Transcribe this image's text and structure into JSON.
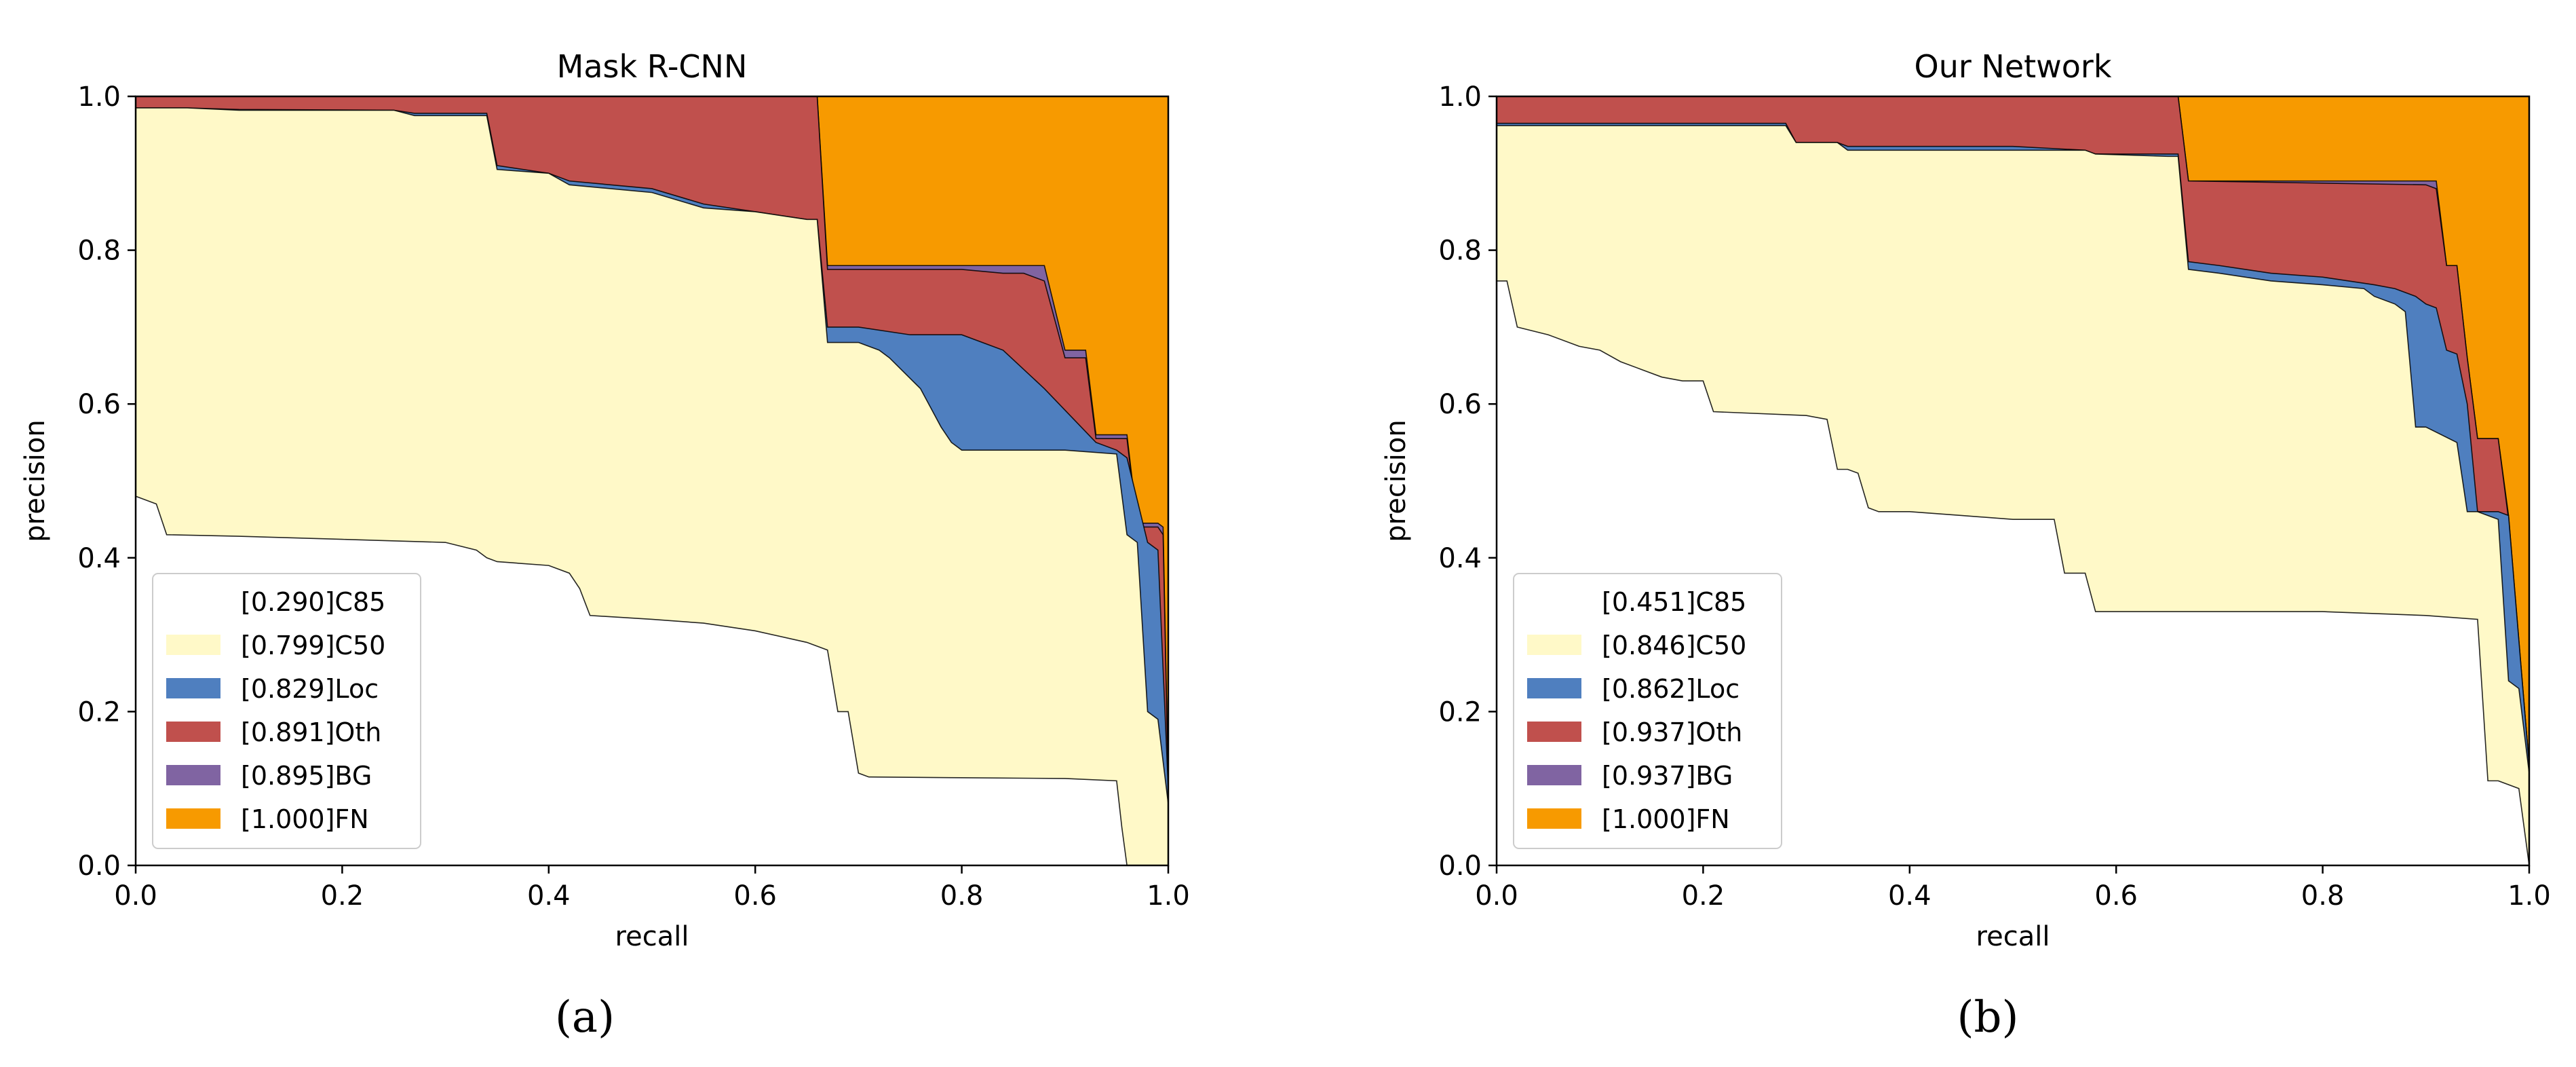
{
  "colors": {
    "C85": "#ffffff",
    "C50": "#fff9c8",
    "Loc": "#4f7fbf",
    "Oth": "#c0504d",
    "BG": "#8064a2",
    "FN": "#f79a00"
  },
  "captions": {
    "a": "(a)",
    "b": "(b)"
  },
  "chart_data": [
    {
      "type": "area",
      "title": "Mask R-CNN",
      "xlabel": "recall",
      "ylabel": "precision",
      "xlim": [
        0,
        1
      ],
      "ylim": [
        0,
        1
      ],
      "xticks": [
        0.0,
        0.2,
        0.4,
        0.6,
        0.8,
        1.0
      ],
      "yticks": [
        0.0,
        0.2,
        0.4,
        0.6,
        0.8,
        1.0
      ],
      "tick_labels_x": [
        "0.0",
        "0.2",
        "0.4",
        "0.6",
        "0.8",
        "1.0"
      ],
      "tick_labels_y": [
        "0.0",
        "0.2",
        "0.4",
        "0.6",
        "0.8",
        "1.0"
      ],
      "legend_position": "lower-left",
      "series": [
        {
          "key": "FN",
          "name": "[1.000]FN",
          "x": [
            0,
            1
          ],
          "y": [
            1.0,
            1.0
          ]
        },
        {
          "key": "BG",
          "name": "[0.895]BG",
          "x": [
            0,
            0.66,
            0.66,
            0.67,
            0.8,
            0.84,
            0.86,
            0.88,
            0.9,
            0.92,
            0.93,
            0.96,
            0.97,
            0.99,
            0.995,
            1
          ],
          "y": [
            1.0,
            1.0,
            1.0,
            0.78,
            0.78,
            0.78,
            0.78,
            0.78,
            0.67,
            0.67,
            0.56,
            0.56,
            0.445,
            0.445,
            0.44,
            0.1
          ]
        },
        {
          "key": "Oth",
          "name": "[0.891]Oth",
          "x": [
            0,
            0.66,
            0.66,
            0.67,
            0.8,
            0.84,
            0.86,
            0.88,
            0.9,
            0.92,
            0.93,
            0.96,
            0.97,
            0.99,
            0.995,
            1
          ],
          "y": [
            1.0,
            1.0,
            1.0,
            0.775,
            0.775,
            0.77,
            0.77,
            0.76,
            0.66,
            0.66,
            0.555,
            0.555,
            0.44,
            0.44,
            0.43,
            0.1
          ]
        },
        {
          "key": "Loc",
          "name": "[0.829]Loc",
          "x": [
            0,
            0.05,
            0.1,
            0.25,
            0.27,
            0.34,
            0.35,
            0.4,
            0.42,
            0.5,
            0.55,
            0.6,
            0.65,
            0.66,
            0.67,
            0.7,
            0.75,
            0.8,
            0.84,
            0.88,
            0.93,
            0.95,
            0.96,
            0.98,
            0.99,
            1
          ],
          "y": [
            0.985,
            0.985,
            0.983,
            0.982,
            0.978,
            0.978,
            0.91,
            0.9,
            0.89,
            0.88,
            0.86,
            0.85,
            0.84,
            0.84,
            0.7,
            0.7,
            0.69,
            0.69,
            0.67,
            0.62,
            0.55,
            0.54,
            0.53,
            0.42,
            0.41,
            0.1
          ]
        },
        {
          "key": "C50",
          "name": "[0.799]C50",
          "x": [
            0,
            0.05,
            0.1,
            0.25,
            0.27,
            0.34,
            0.35,
            0.4,
            0.42,
            0.5,
            0.55,
            0.6,
            0.65,
            0.66,
            0.67,
            0.7,
            0.72,
            0.73,
            0.76,
            0.78,
            0.79,
            0.8,
            0.9,
            0.95,
            0.96,
            0.97,
            0.98,
            0.99,
            1
          ],
          "y": [
            0.985,
            0.985,
            0.982,
            0.982,
            0.975,
            0.975,
            0.905,
            0.9,
            0.885,
            0.875,
            0.855,
            0.85,
            0.84,
            0.84,
            0.68,
            0.68,
            0.67,
            0.66,
            0.62,
            0.57,
            0.55,
            0.54,
            0.54,
            0.535,
            0.43,
            0.42,
            0.2,
            0.19,
            0.08
          ]
        },
        {
          "key": "C85",
          "name": "[0.290]C85",
          "x": [
            0,
            0.02,
            0.03,
            0.1,
            0.2,
            0.3,
            0.33,
            0.34,
            0.35,
            0.4,
            0.42,
            0.43,
            0.44,
            0.5,
            0.55,
            0.6,
            0.65,
            0.67,
            0.68,
            0.69,
            0.7,
            0.71,
            0.8,
            0.9,
            0.95,
            0.955,
            0.96,
            1
          ],
          "y": [
            0.48,
            0.47,
            0.43,
            0.428,
            0.424,
            0.42,
            0.41,
            0.4,
            0.395,
            0.39,
            0.38,
            0.36,
            0.325,
            0.32,
            0.315,
            0.305,
            0.29,
            0.28,
            0.2,
            0.2,
            0.12,
            0.115,
            0.114,
            0.113,
            0.11,
            0.05,
            0,
            0
          ]
        }
      ]
    },
    {
      "type": "area",
      "title": "Our Network",
      "xlabel": "recall",
      "ylabel": "precision",
      "xlim": [
        0,
        1
      ],
      "ylim": [
        0,
        1
      ],
      "xticks": [
        0.0,
        0.2,
        0.4,
        0.6,
        0.8,
        1.0
      ],
      "yticks": [
        0.0,
        0.2,
        0.4,
        0.6,
        0.8,
        1.0
      ],
      "tick_labels_x": [
        "0.0",
        "0.2",
        "0.4",
        "0.6",
        "0.8",
        "1.0"
      ],
      "tick_labels_y": [
        "0.0",
        "0.2",
        "0.4",
        "0.6",
        "0.8",
        "1.0"
      ],
      "legend_position": "lower-left",
      "series": [
        {
          "key": "FN",
          "name": "[1.000]FN",
          "x": [
            0,
            1
          ],
          "y": [
            1.0,
            1.0
          ]
        },
        {
          "key": "BG",
          "name": "[0.937]BG",
          "x": [
            0,
            0.66,
            0.66,
            0.67,
            0.9,
            0.91,
            0.92,
            0.93,
            0.94,
            0.95,
            0.97,
            0.98,
            1
          ],
          "y": [
            1.0,
            1.0,
            1.0,
            0.89,
            0.89,
            0.89,
            0.78,
            0.78,
            0.66,
            0.555,
            0.555,
            0.455,
            0.13
          ]
        },
        {
          "key": "Oth",
          "name": "[0.937]Oth",
          "x": [
            0,
            0.66,
            0.66,
            0.67,
            0.9,
            0.91,
            0.92,
            0.93,
            0.94,
            0.95,
            0.97,
            0.98,
            1
          ],
          "y": [
            1.0,
            1.0,
            1.0,
            0.89,
            0.885,
            0.88,
            0.78,
            0.78,
            0.66,
            0.555,
            0.555,
            0.45,
            0.13
          ]
        },
        {
          "key": "Loc",
          "name": "[0.862]Loc",
          "x": [
            0,
            0.28,
            0.29,
            0.33,
            0.34,
            0.5,
            0.57,
            0.58,
            0.65,
            0.66,
            0.67,
            0.7,
            0.75,
            0.8,
            0.85,
            0.87,
            0.89,
            0.9,
            0.91,
            0.92,
            0.93,
            0.94,
            0.95,
            0.97,
            0.98,
            1
          ],
          "y": [
            0.965,
            0.965,
            0.94,
            0.94,
            0.935,
            0.935,
            0.93,
            0.925,
            0.925,
            0.925,
            0.785,
            0.78,
            0.77,
            0.765,
            0.755,
            0.75,
            0.74,
            0.73,
            0.725,
            0.67,
            0.665,
            0.6,
            0.46,
            0.46,
            0.455,
            0.13
          ]
        },
        {
          "key": "C50",
          "name": "[0.846]C50",
          "x": [
            0,
            0.28,
            0.29,
            0.33,
            0.34,
            0.5,
            0.57,
            0.58,
            0.65,
            0.66,
            0.67,
            0.7,
            0.75,
            0.8,
            0.84,
            0.85,
            0.87,
            0.88,
            0.89,
            0.9,
            0.93,
            0.94,
            0.95,
            0.96,
            0.97,
            0.98,
            0.99,
            1
          ],
          "y": [
            0.962,
            0.962,
            0.94,
            0.94,
            0.93,
            0.93,
            0.93,
            0.925,
            0.922,
            0.922,
            0.775,
            0.77,
            0.76,
            0.755,
            0.75,
            0.74,
            0.73,
            0.72,
            0.57,
            0.57,
            0.55,
            0.46,
            0.46,
            0.455,
            0.45,
            0.24,
            0.23,
            0.12
          ]
        },
        {
          "key": "C85",
          "name": "[0.451]C85",
          "x": [
            0,
            0.01,
            0.02,
            0.05,
            0.08,
            0.1,
            0.12,
            0.14,
            0.16,
            0.18,
            0.2,
            0.21,
            0.3,
            0.32,
            0.33,
            0.34,
            0.35,
            0.36,
            0.37,
            0.4,
            0.45,
            0.5,
            0.54,
            0.55,
            0.57,
            0.58,
            0.6,
            0.7,
            0.8,
            0.9,
            0.95,
            0.96,
            0.97,
            0.99,
            1
          ],
          "y": [
            0.76,
            0.76,
            0.7,
            0.69,
            0.675,
            0.67,
            0.655,
            0.645,
            0.635,
            0.63,
            0.63,
            0.59,
            0.585,
            0.58,
            0.515,
            0.515,
            0.51,
            0.465,
            0.46,
            0.46,
            0.455,
            0.45,
            0.45,
            0.38,
            0.38,
            0.33,
            0.33,
            0.33,
            0.33,
            0.325,
            0.32,
            0.11,
            0.11,
            0.1,
            0
          ]
        }
      ]
    }
  ]
}
